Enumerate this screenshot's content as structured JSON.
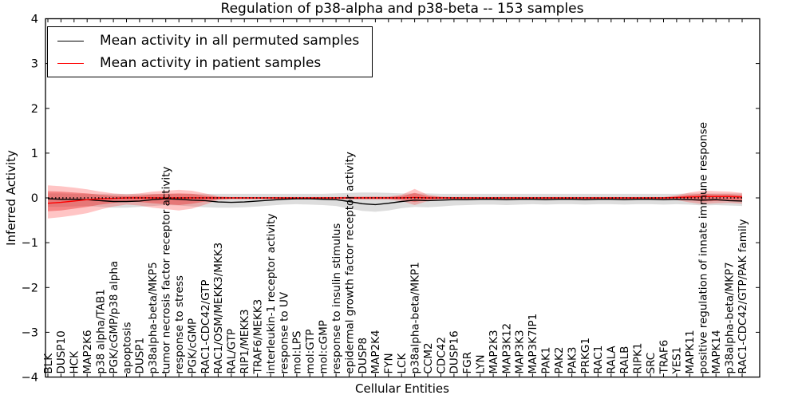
{
  "title": "Regulation of p38-alpha and p38-beta -- 153 samples",
  "axes": {
    "ylabel": "Inferred Activity",
    "xlabel": "Cellular Entities",
    "yticks": [
      "4",
      "3",
      "2",
      "1",
      "0",
      "−1",
      "−2",
      "−3",
      "−4"
    ],
    "ytick_values": [
      4,
      3,
      2,
      1,
      0,
      -1,
      -2,
      -3,
      -4
    ]
  },
  "legend": {
    "entries": [
      {
        "label": "Mean activity in all permuted samples",
        "color": "#000000"
      },
      {
        "label": "Mean activity in patient samples",
        "color": "#ff0000"
      }
    ]
  },
  "chart_data": {
    "type": "line",
    "title": "Regulation of p38-alpha and p38-beta -- 153 samples",
    "xlabel": "Cellular Entities",
    "ylabel": "Inferred Activity",
    "ylim": [
      -4,
      4
    ],
    "grid": false,
    "legend_position": "upper left",
    "zero_reference_line": {
      "y": 0,
      "style": "dotted",
      "color": "#000000"
    },
    "categories": [
      "BLK",
      "DUSP10",
      "HCK",
      "MAP2K6",
      "p38 alpha/TAB1",
      "PGK/cGMP/p38 alpha",
      "apoptosis",
      "DUSP1",
      "p38alpha-beta/MKP5",
      "tumor necrosis factor receptor activity",
      "response to stress",
      "PGK/cGMP",
      "RAC1-CDC42/GTP",
      "RAC1/OSM/MEKK3/MKK3",
      "RAL/GTP",
      "RIP1/MEKK3",
      "TRAF6/MEKK3",
      "interleukin-1 receptor activity",
      "response to UV",
      "mol:LPS",
      "mol:GTP",
      "mol:cGMP",
      "response to insulin stimulus",
      "epidermal growth factor receptor activity",
      "DUSP8",
      "MAP2K4",
      "FYN",
      "LCK",
      "p38alpha-beta/MKP1",
      "CCM2",
      "CDC42",
      "DUSP16",
      "FGR",
      "LYN",
      "MAP2K3",
      "MAP3K12",
      "MAP3K3",
      "MAP3K7IP1",
      "PAK1",
      "PAK2",
      "PAK3",
      "PRKG1",
      "RAC1",
      "RALA",
      "RALB",
      "RIPK1",
      "SRC",
      "TRAF6",
      "YES1",
      "MAPK11",
      "positive regulation of innate immune response",
      "MAPK14",
      "p38alpha-beta/MKP7",
      "RAC1-CDC42/GTP/PAK family"
    ],
    "series": [
      {
        "name": "Mean activity in all permuted samples",
        "kind": "line",
        "color": "#000000",
        "values": [
          -0.02,
          -0.03,
          -0.03,
          -0.04,
          -0.06,
          -0.08,
          -0.08,
          -0.07,
          -0.04,
          -0.02,
          -0.03,
          -0.05,
          -0.06,
          -0.09,
          -0.1,
          -0.09,
          -0.07,
          -0.05,
          -0.03,
          -0.02,
          -0.02,
          -0.03,
          -0.04,
          -0.08,
          -0.13,
          -0.15,
          -0.12,
          -0.08,
          -0.05,
          -0.06,
          -0.05,
          -0.04,
          -0.04,
          -0.03,
          -0.03,
          -0.04,
          -0.03,
          -0.03,
          -0.04,
          -0.03,
          -0.03,
          -0.04,
          -0.03,
          -0.03,
          -0.04,
          -0.03,
          -0.03,
          -0.04,
          -0.03,
          -0.04,
          -0.05,
          -0.04,
          -0.06,
          -0.07
        ]
      },
      {
        "name": "Mean activity in patient samples",
        "kind": "line",
        "color": "#ff0000",
        "values": [
          -0.12,
          -0.1,
          -0.07,
          -0.04,
          -0.02,
          -0.01,
          0,
          0,
          0,
          0,
          0,
          0,
          0,
          0,
          0,
          0,
          0,
          0,
          0,
          0,
          0,
          0,
          0,
          0,
          0,
          0,
          0,
          0,
          0.01,
          0,
          0,
          0,
          0,
          0,
          0,
          0,
          0,
          0,
          0,
          0,
          0,
          0,
          0,
          0,
          0,
          0,
          0,
          0,
          0.01,
          0.02,
          0.03,
          0.03,
          0.03,
          0.02
        ]
      },
      {
        "name": "permuted-samples-band",
        "kind": "band",
        "color": "#aaaaaa",
        "opacity": 0.4,
        "upper": [
          0.1,
          0.1,
          0.09,
          0.09,
          0.09,
          0.09,
          0.09,
          0.09,
          0.09,
          0.09,
          0.09,
          0.09,
          0.09,
          0.09,
          0.09,
          0.09,
          0.09,
          0.09,
          0.09,
          0.09,
          0.09,
          0.09,
          0.1,
          0.11,
          0.12,
          0.12,
          0.11,
          0.1,
          0.1,
          0.1,
          0.09,
          0.09,
          0.09,
          0.09,
          0.09,
          0.09,
          0.09,
          0.09,
          0.09,
          0.09,
          0.09,
          0.09,
          0.09,
          0.09,
          0.09,
          0.09,
          0.09,
          0.09,
          0.09,
          0.1,
          0.1,
          0.1,
          0.1,
          0.1
        ],
        "lower": [
          -0.2,
          -0.2,
          -0.19,
          -0.18,
          -0.2,
          -0.22,
          -0.22,
          -0.2,
          -0.18,
          -0.16,
          -0.17,
          -0.19,
          -0.21,
          -0.22,
          -0.22,
          -0.21,
          -0.19,
          -0.17,
          -0.15,
          -0.14,
          -0.15,
          -0.16,
          -0.18,
          -0.24,
          -0.29,
          -0.31,
          -0.28,
          -0.23,
          -0.2,
          -0.21,
          -0.19,
          -0.17,
          -0.16,
          -0.15,
          -0.15,
          -0.16,
          -0.15,
          -0.14,
          -0.15,
          -0.14,
          -0.14,
          -0.15,
          -0.14,
          -0.14,
          -0.15,
          -0.14,
          -0.14,
          -0.15,
          -0.14,
          -0.15,
          -0.17,
          -0.16,
          -0.17,
          -0.18
        ]
      },
      {
        "name": "patient-samples-band-outer",
        "kind": "band",
        "color": "#ff3030",
        "opacity": 0.28,
        "upper": [
          0.28,
          0.26,
          0.23,
          0.19,
          0.14,
          0.1,
          0.08,
          0.1,
          0.14,
          0.16,
          0.18,
          0.16,
          0.1,
          0.04,
          0.02,
          0.02,
          0.02,
          0.02,
          0.02,
          0.02,
          0.02,
          0.02,
          0.02,
          0.03,
          0.03,
          0.03,
          0.03,
          0.07,
          0.2,
          0.07,
          0.03,
          0.02,
          0.02,
          0.02,
          0.02,
          0.02,
          0.02,
          0.02,
          0.02,
          0.02,
          0.02,
          0.02,
          0.02,
          0.02,
          0.02,
          0.02,
          0.02,
          0.02,
          0.06,
          0.12,
          0.16,
          0.15,
          0.14,
          0.11
        ],
        "lower": [
          -0.46,
          -0.43,
          -0.39,
          -0.34,
          -0.26,
          -0.19,
          -0.15,
          -0.17,
          -0.22,
          -0.25,
          -0.28,
          -0.24,
          -0.15,
          -0.05,
          -0.03,
          -0.03,
          -0.03,
          -0.03,
          -0.03,
          -0.03,
          -0.03,
          -0.03,
          -0.03,
          -0.03,
          -0.04,
          -0.04,
          -0.04,
          -0.07,
          -0.16,
          -0.07,
          -0.03,
          -0.03,
          -0.03,
          -0.03,
          -0.03,
          -0.03,
          -0.03,
          -0.03,
          -0.03,
          -0.03,
          -0.03,
          -0.03,
          -0.03,
          -0.03,
          -0.03,
          -0.03,
          -0.03,
          -0.03,
          -0.05,
          -0.1,
          -0.14,
          -0.12,
          -0.11,
          -0.13
        ]
      },
      {
        "name": "patient-samples-band-inner",
        "kind": "band",
        "color": "#e62e2e",
        "opacity": 0.42,
        "upper": [
          0.15,
          0.14,
          0.12,
          0.1,
          0.07,
          0.05,
          0.04,
          0.05,
          0.08,
          0.09,
          0.1,
          0.09,
          0.05,
          0.02,
          0.01,
          0.01,
          0.01,
          0.01,
          0.01,
          0.01,
          0.01,
          0.01,
          0.01,
          0.02,
          0.02,
          0.02,
          0.02,
          0.04,
          0.11,
          0.04,
          0.02,
          0.01,
          0.01,
          0.01,
          0.01,
          0.01,
          0.01,
          0.01,
          0.01,
          0.01,
          0.01,
          0.01,
          0.01,
          0.01,
          0.01,
          0.01,
          0.01,
          0.01,
          0.03,
          0.07,
          0.09,
          0.08,
          0.08,
          0.06
        ],
        "lower": [
          -0.3,
          -0.28,
          -0.24,
          -0.2,
          -0.15,
          -0.11,
          -0.08,
          -0.09,
          -0.12,
          -0.14,
          -0.16,
          -0.13,
          -0.08,
          -0.03,
          -0.02,
          -0.02,
          -0.02,
          -0.02,
          -0.02,
          -0.02,
          -0.02,
          -0.02,
          -0.02,
          -0.02,
          -0.02,
          -0.02,
          -0.02,
          -0.04,
          -0.09,
          -0.04,
          -0.02,
          -0.02,
          -0.02,
          -0.02,
          -0.02,
          -0.02,
          -0.02,
          -0.02,
          -0.02,
          -0.02,
          -0.02,
          -0.02,
          -0.02,
          -0.02,
          -0.02,
          -0.02,
          -0.02,
          -0.02,
          -0.03,
          -0.05,
          -0.08,
          -0.07,
          -0.06,
          -0.07
        ]
      }
    ]
  }
}
